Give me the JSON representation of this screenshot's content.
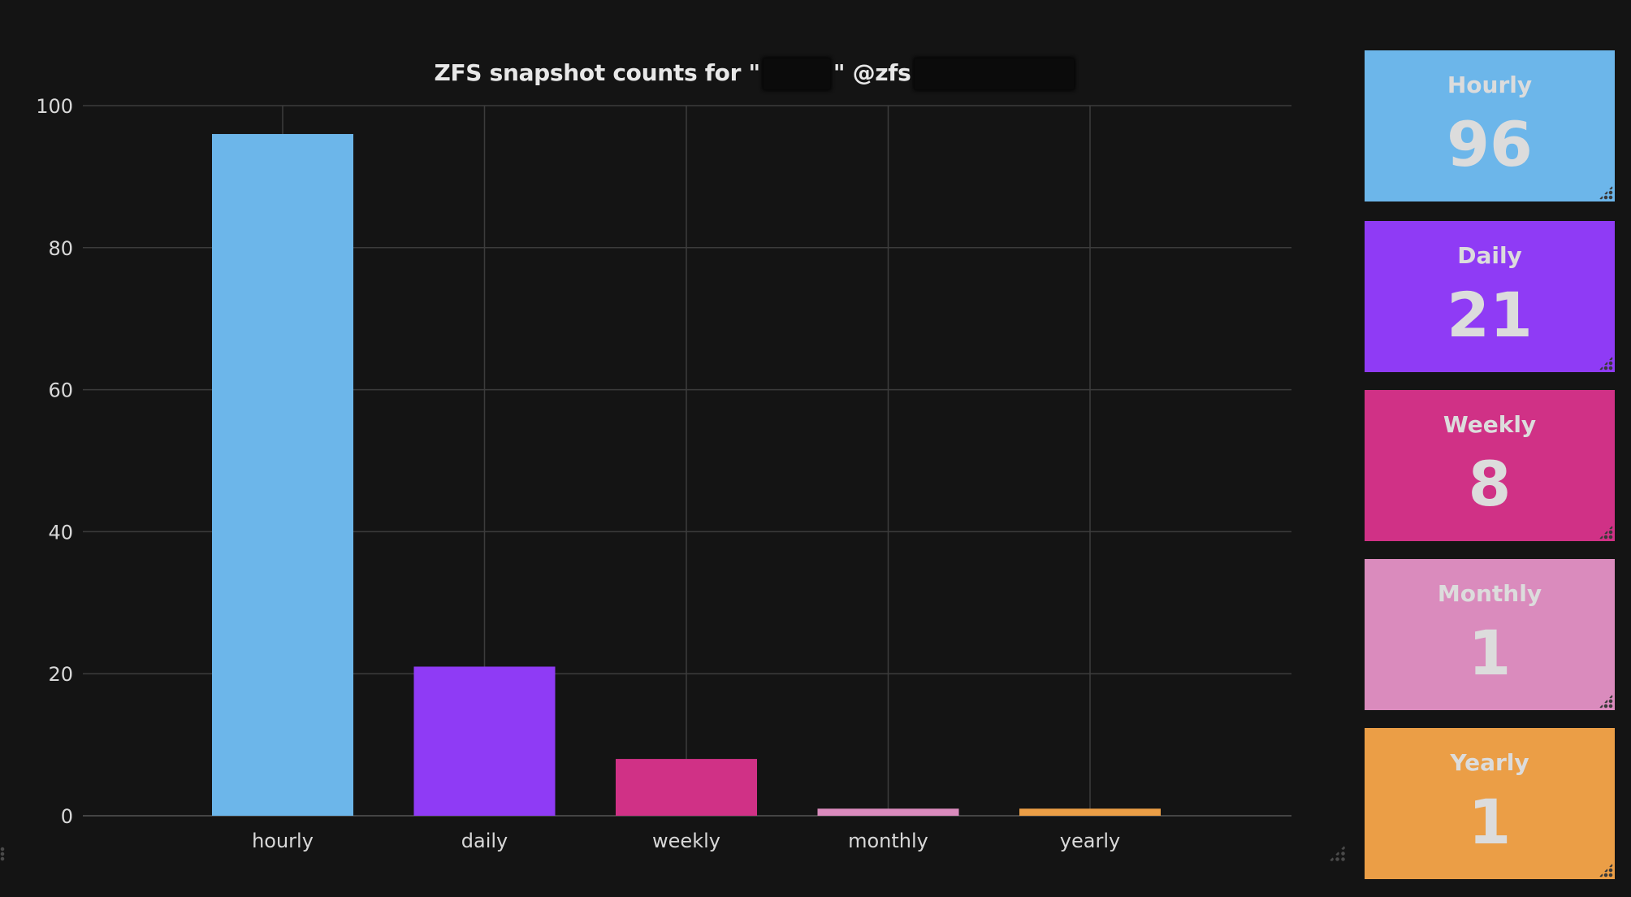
{
  "chart_data": {
    "type": "bar",
    "title_prefix": "ZFS snapshot counts for \"",
    "title_middle": "\" @zfs",
    "categories": [
      "hourly",
      "daily",
      "weekly",
      "monthly",
      "yearly"
    ],
    "values": [
      96,
      21,
      8,
      1,
      1
    ],
    "colors": [
      "#6cb6ea",
      "#8f3bf5",
      "#d03186",
      "#da8bbd",
      "#eb9e46"
    ],
    "ylim": [
      0,
      100
    ],
    "yticks": [
      0,
      20,
      40,
      60,
      80,
      100
    ],
    "grid": true,
    "legend": "none"
  },
  "stats": [
    {
      "title": "Hourly",
      "value": "96",
      "color": "#6cb6ea"
    },
    {
      "title": "Daily",
      "value": "21",
      "color": "#8f3bf5"
    },
    {
      "title": "Weekly",
      "value": "8",
      "color": "#d03186"
    },
    {
      "title": "Monthly",
      "value": "1",
      "color": "#da8bbd"
    },
    {
      "title": "Yearly",
      "value": "1",
      "color": "#eb9e46"
    }
  ]
}
